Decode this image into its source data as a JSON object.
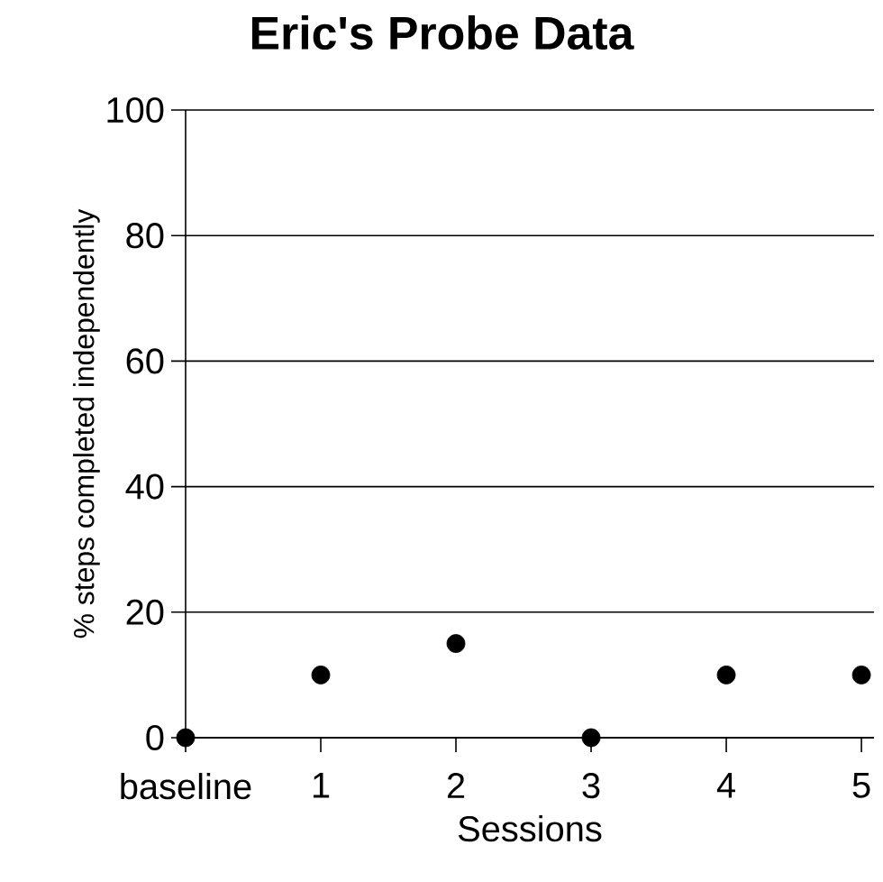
{
  "chart_data": {
    "type": "scatter",
    "title": "Eric's Probe Data",
    "xlabel": "Sessions",
    "ylabel": "% steps completed independently",
    "categories": [
      "baseline",
      "1",
      "2",
      "3",
      "4",
      "5"
    ],
    "values": [
      0,
      10,
      15,
      0,
      10,
      10
    ],
    "color": "#000000",
    "marker": "circle",
    "ylim": [
      0,
      100
    ],
    "yticks": [
      0,
      20,
      40,
      60,
      80,
      100
    ],
    "grid": "y"
  }
}
